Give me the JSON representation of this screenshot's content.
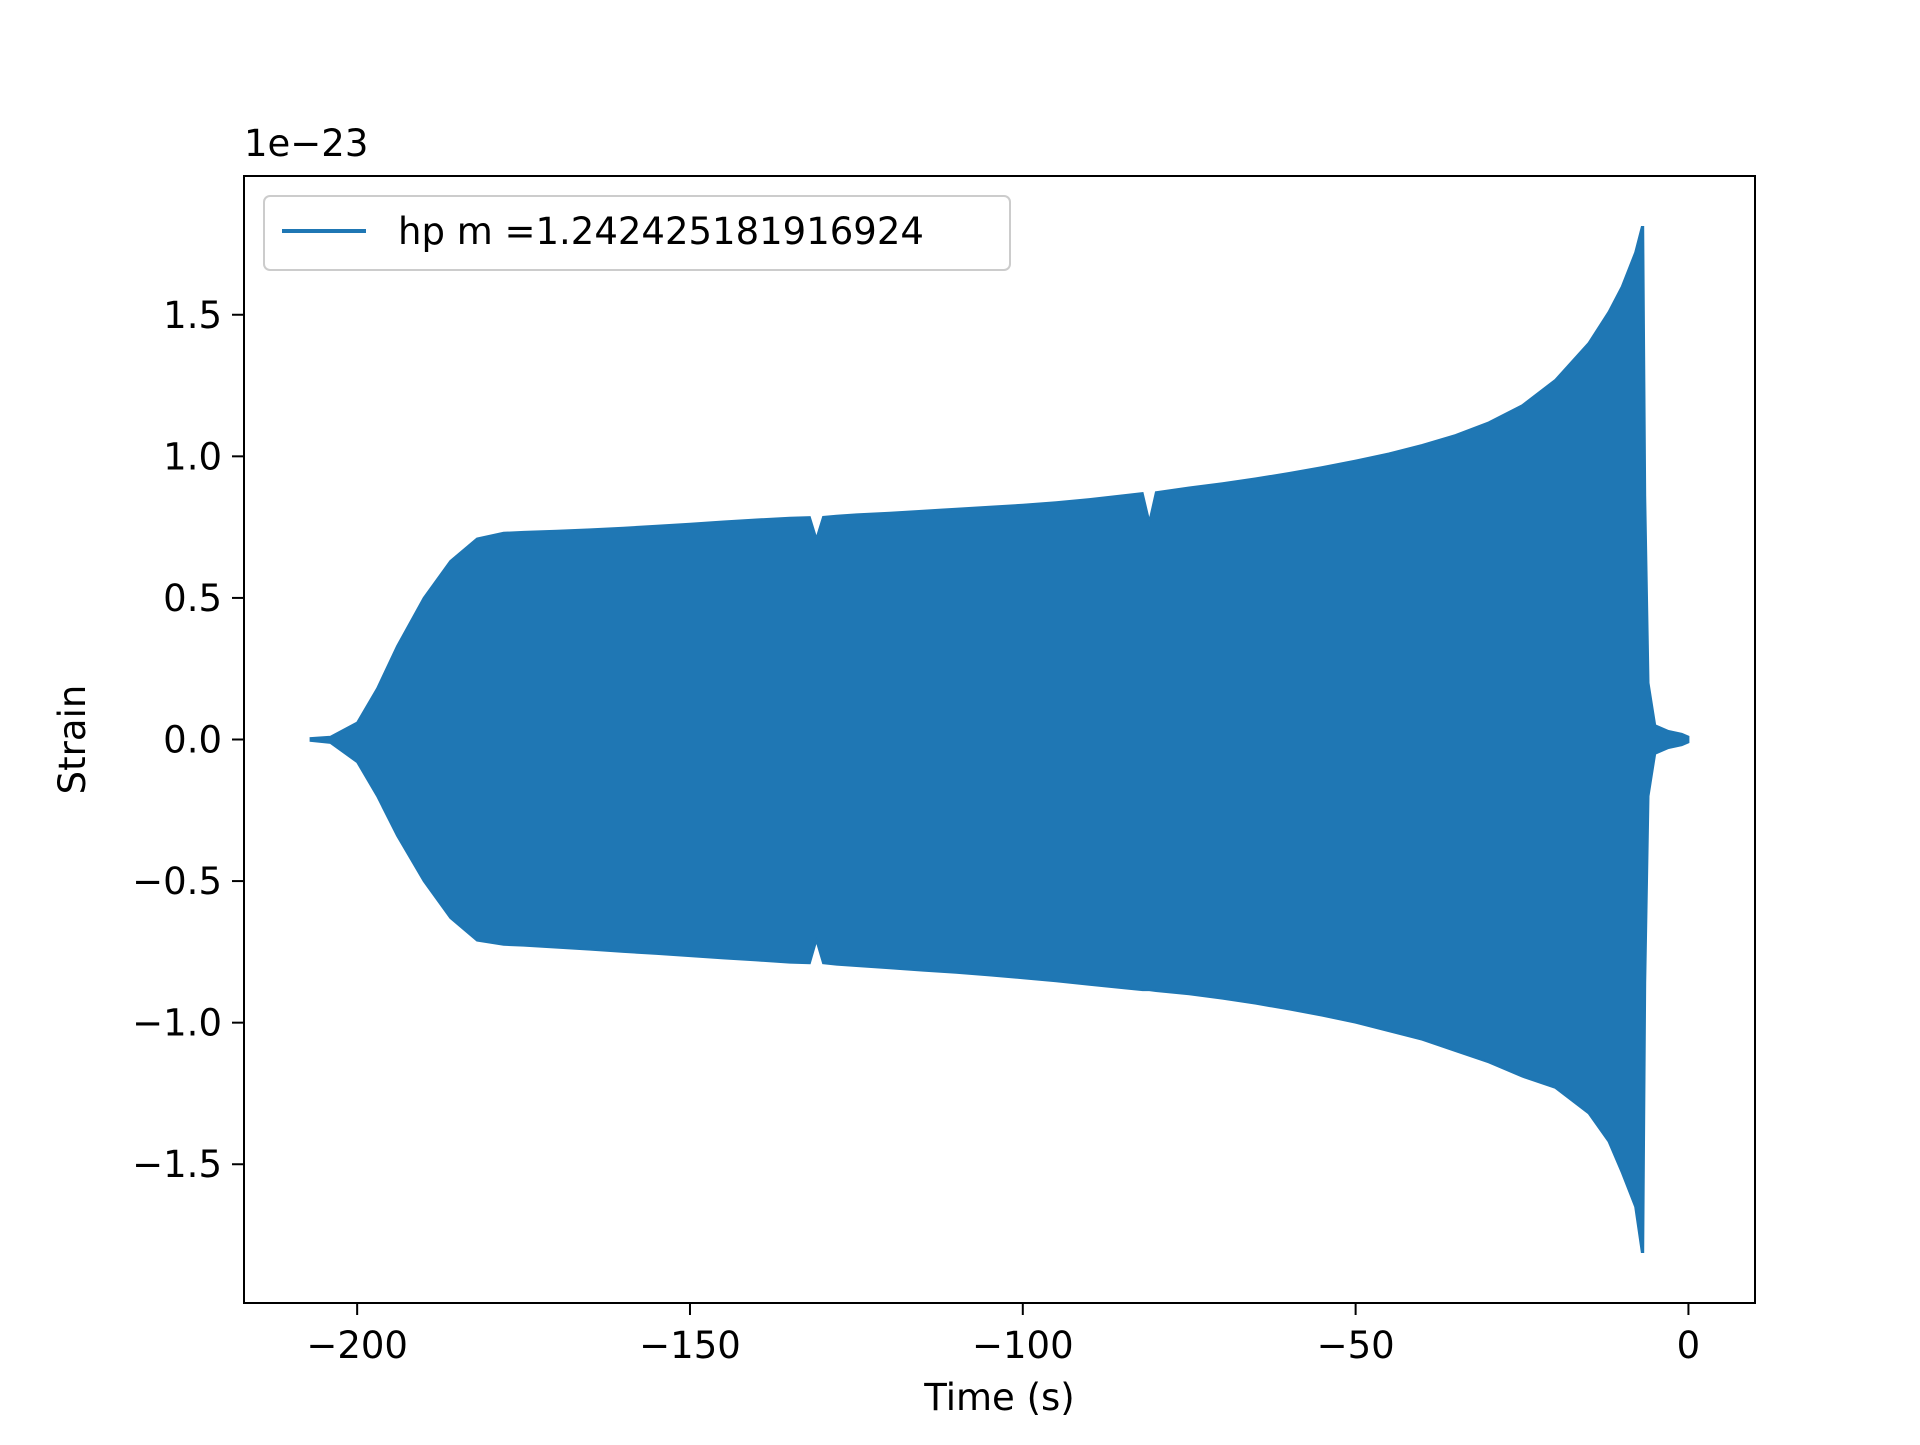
{
  "chart_data": {
    "type": "area",
    "title": "",
    "xlabel": "Time (s)",
    "ylabel": "Strain",
    "offset_label": "1e−23",
    "xlim": [
      -217,
      10
    ],
    "ylim": [
      -1.99,
      1.99
    ],
    "xticks": [
      -200,
      -150,
      -100,
      -50,
      0
    ],
    "xtick_labels": [
      "−200",
      "−150",
      "−100",
      "−50",
      "0"
    ],
    "yticks": [
      1.5,
      1.0,
      0.5,
      0.0,
      -0.5,
      -1.0,
      -1.5
    ],
    "ytick_labels": [
      "1.5",
      "1.0",
      "0.5",
      "0.0",
      "−0.5",
      "−1.0",
      "−1.5"
    ],
    "grid": false,
    "legend_position": "top-left",
    "series": [
      {
        "name": "hp m =1.242425181916924",
        "color": "#1f77b4",
        "x": [
          -207,
          -204,
          -200,
          -197,
          -194,
          -190,
          -186,
          -182,
          -178,
          -175,
          -170,
          -165,
          -160,
          -155,
          -150,
          -145,
          -140,
          -135,
          -132,
          -131,
          -130,
          -128,
          -125,
          -120,
          -115,
          -110,
          -105,
          -100,
          -95,
          -90,
          -85,
          -82,
          -81,
          -80,
          -75,
          -70,
          -65,
          -60,
          -55,
          -50,
          -45,
          -40,
          -35,
          -30,
          -25,
          -20,
          -15,
          -12,
          -10,
          -8,
          -7,
          -6.8,
          -6.5,
          -6,
          -5,
          -3,
          -1,
          0
        ],
        "upper": [
          0.005,
          0.01,
          0.06,
          0.18,
          0.33,
          0.5,
          0.63,
          0.71,
          0.73,
          0.733,
          0.737,
          0.742,
          0.748,
          0.755,
          0.762,
          0.77,
          0.777,
          0.783,
          0.785,
          0.71,
          0.786,
          0.79,
          0.795,
          0.801,
          0.808,
          0.815,
          0.822,
          0.829,
          0.838,
          0.849,
          0.862,
          0.87,
          0.77,
          0.873,
          0.89,
          0.905,
          0.922,
          0.941,
          0.962,
          0.985,
          1.01,
          1.04,
          1.075,
          1.12,
          1.18,
          1.27,
          1.4,
          1.51,
          1.6,
          1.72,
          1.81,
          1.81,
          0.86,
          0.2,
          0.05,
          0.03,
          0.02,
          0.01
        ],
        "lower": [
          -0.005,
          -0.012,
          -0.08,
          -0.2,
          -0.34,
          -0.5,
          -0.63,
          -0.71,
          -0.725,
          -0.728,
          -0.735,
          -0.742,
          -0.75,
          -0.757,
          -0.765,
          -0.773,
          -0.78,
          -0.788,
          -0.79,
          -0.71,
          -0.79,
          -0.795,
          -0.8,
          -0.808,
          -0.816,
          -0.824,
          -0.833,
          -0.843,
          -0.854,
          -0.866,
          -0.878,
          -0.885,
          -0.885,
          -0.888,
          -0.9,
          -0.915,
          -0.933,
          -0.953,
          -0.975,
          -1.0,
          -1.03,
          -1.06,
          -1.1,
          -1.14,
          -1.19,
          -1.23,
          -1.32,
          -1.42,
          -1.53,
          -1.65,
          -1.81,
          -1.81,
          -0.86,
          -0.2,
          -0.05,
          -0.03,
          -0.02,
          -0.01
        ]
      }
    ]
  }
}
